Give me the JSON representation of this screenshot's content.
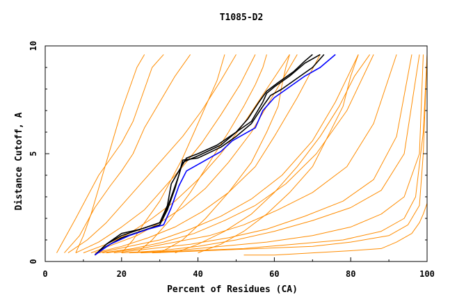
{
  "chart_data": {
    "type": "line",
    "title": "T1085-D2",
    "xlabel": "Percent of Residues (CA)",
    "ylabel": "Distance Cutoff, A",
    "xlim": [
      0,
      100
    ],
    "ylim": [
      0,
      10
    ],
    "x_ticks": [
      {
        "value": 0,
        "label": "0"
      },
      {
        "value": 20,
        "label": "20"
      },
      {
        "value": 40,
        "label": "40"
      },
      {
        "value": 60,
        "label": "60"
      },
      {
        "value": 80,
        "label": "80"
      },
      {
        "value": 100,
        "label": "100"
      }
    ],
    "y_ticks": [
      {
        "value": 0,
        "label": "0"
      },
      {
        "value": 5,
        "label": "5"
      },
      {
        "value": 10,
        "label": "10"
      }
    ],
    "grid": false,
    "legend": "none",
    "colors": {
      "background_models": "#ff8c00",
      "top_models": "#000000",
      "highlighted_model": "#0000ff"
    },
    "background_series_note": "many orange model curves (approximate envelopes)",
    "series": [
      {
        "group": "orange",
        "x": [
          3,
          8,
          14,
          20,
          23,
          25,
          27,
          28,
          30,
          31
        ],
        "y": [
          0.4,
          2.0,
          4.0,
          5.5,
          6.5,
          7.5,
          8.5,
          9.0,
          9.4,
          9.6
        ]
      },
      {
        "group": "orange",
        "x": [
          5,
          9,
          13,
          17,
          20,
          23,
          26,
          30,
          34,
          38
        ],
        "y": [
          0.4,
          1.2,
          2.5,
          3.5,
          4.2,
          5.0,
          6.2,
          7.4,
          8.6,
          9.6
        ]
      },
      {
        "group": "orange",
        "x": [
          6,
          11,
          16,
          21,
          26,
          31,
          36,
          41,
          46,
          50
        ],
        "y": [
          0.4,
          1.0,
          1.8,
          2.8,
          3.8,
          4.8,
          5.8,
          7.0,
          8.4,
          9.6
        ]
      },
      {
        "group": "orange",
        "x": [
          8,
          14,
          20,
          26,
          31,
          36,
          41,
          46,
          51,
          55
        ],
        "y": [
          0.4,
          0.9,
          1.6,
          2.4,
          3.4,
          4.4,
          5.5,
          6.8,
          8.2,
          9.6
        ]
      },
      {
        "group": "orange",
        "x": [
          10,
          16,
          22,
          28,
          34,
          40,
          46,
          52,
          58,
          64
        ],
        "y": [
          0.4,
          0.8,
          1.3,
          2.0,
          2.8,
          3.8,
          5.0,
          6.4,
          8.0,
          9.6
        ]
      },
      {
        "group": "orange",
        "x": [
          12,
          18,
          24,
          30,
          36,
          42,
          48,
          54,
          60,
          66
        ],
        "y": [
          0.4,
          0.8,
          1.2,
          1.8,
          2.5,
          3.4,
          4.6,
          6.0,
          7.8,
          9.6
        ]
      },
      {
        "group": "orange",
        "x": [
          13,
          20,
          27,
          34,
          41,
          48,
          55,
          60,
          66,
          72
        ],
        "y": [
          0.4,
          0.7,
          1.1,
          1.6,
          2.3,
          3.2,
          4.4,
          5.8,
          7.6,
          9.6
        ]
      },
      {
        "group": "orange",
        "x": [
          14,
          22,
          30,
          38,
          46,
          54,
          62,
          70,
          76,
          82
        ],
        "y": [
          0.4,
          0.7,
          1.0,
          1.5,
          2.1,
          2.9,
          4.0,
          5.6,
          7.4,
          9.6
        ]
      },
      {
        "group": "orange",
        "x": [
          15,
          23,
          31,
          39,
          47,
          55,
          63,
          71,
          79,
          86
        ],
        "y": [
          0.4,
          0.6,
          0.9,
          1.3,
          1.9,
          2.6,
          3.6,
          5.0,
          7.0,
          9.6
        ]
      },
      {
        "group": "orange",
        "x": [
          16,
          25,
          34,
          43,
          52,
          61,
          70,
          79,
          86,
          92
        ],
        "y": [
          0.4,
          0.6,
          0.9,
          1.2,
          1.7,
          2.4,
          3.2,
          4.4,
          6.4,
          9.6
        ]
      },
      {
        "group": "orange",
        "x": [
          18,
          28,
          38,
          48,
          58,
          68,
          78,
          86,
          92,
          96
        ],
        "y": [
          0.4,
          0.6,
          0.8,
          1.1,
          1.5,
          2.1,
          2.8,
          3.8,
          5.8,
          9.6
        ]
      },
      {
        "group": "orange",
        "x": [
          20,
          30,
          40,
          50,
          60,
          70,
          80,
          88,
          94,
          98
        ],
        "y": [
          0.4,
          0.5,
          0.7,
          1.0,
          1.4,
          1.9,
          2.5,
          3.3,
          5.0,
          9.6
        ]
      },
      {
        "group": "orange",
        "x": [
          22,
          34,
          46,
          58,
          70,
          80,
          88,
          94,
          98,
          99
        ],
        "y": [
          0.4,
          0.5,
          0.7,
          0.9,
          1.2,
          1.6,
          2.2,
          3.0,
          5.0,
          9.6
        ]
      },
      {
        "group": "orange",
        "x": [
          25,
          38,
          52,
          65,
          78,
          88,
          94,
          97,
          99,
          100
        ],
        "y": [
          0.4,
          0.5,
          0.6,
          0.8,
          1.0,
          1.4,
          2.0,
          3.0,
          6.0,
          9.6
        ]
      },
      {
        "group": "orange",
        "x": [
          28,
          42,
          56,
          70,
          80,
          90,
          95,
          98,
          99,
          100
        ],
        "y": [
          0.4,
          0.5,
          0.6,
          0.7,
          0.9,
          1.2,
          1.7,
          2.6,
          5.0,
          9.6
        ]
      },
      {
        "group": "orange",
        "x": [
          52,
          60,
          70,
          80,
          88,
          92,
          96,
          98,
          99,
          100
        ],
        "y": [
          0.3,
          0.3,
          0.4,
          0.5,
          0.6,
          0.9,
          1.3,
          1.8,
          2.2,
          2.7
        ]
      },
      {
        "group": "orange",
        "x": [
          20,
          23,
          26,
          30,
          33,
          36,
          39,
          42,
          45,
          47
        ],
        "y": [
          0.4,
          1.0,
          1.8,
          2.8,
          3.8,
          4.8,
          6.0,
          7.2,
          8.4,
          9.6
        ]
      },
      {
        "group": "orange",
        "x": [
          24,
          28,
          33,
          38,
          43,
          48,
          52,
          55,
          57,
          58
        ],
        "y": [
          0.4,
          1.0,
          2.0,
          3.2,
          4.6,
          6.0,
          7.2,
          8.2,
          9.0,
          9.6
        ]
      },
      {
        "group": "orange",
        "x": [
          30,
          36,
          42,
          48,
          54,
          58,
          61,
          62,
          63,
          64
        ],
        "y": [
          0.4,
          1.0,
          2.0,
          3.2,
          4.6,
          6.0,
          7.2,
          8.2,
          9.0,
          9.6
        ]
      },
      {
        "group": "orange",
        "x": [
          34,
          40,
          47,
          54,
          60,
          66,
          72,
          77,
          81,
          85
        ],
        "y": [
          0.4,
          0.8,
          1.4,
          2.2,
          3.2,
          4.4,
          5.8,
          7.2,
          8.6,
          9.6
        ]
      },
      {
        "group": "orange",
        "x": [
          8,
          10,
          12,
          14,
          16,
          18,
          20,
          22,
          24,
          26
        ],
        "y": [
          0.4,
          1.2,
          2.2,
          3.4,
          4.6,
          5.8,
          7.0,
          8.0,
          9.0,
          9.6
        ]
      },
      {
        "group": "orange",
        "x": [
          40,
          46,
          52,
          58,
          64,
          70,
          74,
          78,
          80,
          82
        ],
        "y": [
          0.4,
          0.8,
          1.4,
          2.2,
          3.2,
          4.4,
          5.8,
          7.2,
          8.6,
          9.6
        ]
      },
      {
        "group": "black",
        "x": [
          13,
          16,
          20,
          25,
          30,
          32,
          34,
          35,
          36,
          40,
          46,
          50,
          54,
          57,
          58,
          60,
          64,
          68,
          72
        ],
        "y": [
          0.3,
          0.8,
          1.2,
          1.5,
          1.8,
          2.5,
          3.5,
          4.0,
          4.6,
          4.9,
          5.4,
          6.0,
          6.5,
          7.4,
          7.8,
          8.1,
          8.6,
          9.2,
          9.6
        ]
      },
      {
        "group": "black",
        "x": [
          13,
          16,
          20,
          25,
          30,
          32,
          33,
          35,
          37,
          40,
          45,
          50,
          53,
          56,
          58,
          61,
          65,
          68,
          70
        ],
        "y": [
          0.3,
          0.8,
          1.3,
          1.5,
          1.8,
          2.6,
          3.6,
          4.2,
          4.8,
          5.0,
          5.4,
          6.0,
          6.6,
          7.4,
          7.9,
          8.3,
          8.8,
          9.3,
          9.6
        ]
      },
      {
        "group": "black",
        "x": [
          13,
          16,
          20,
          25,
          30,
          32,
          34,
          35,
          36,
          40,
          46,
          50,
          54,
          57,
          59,
          62,
          66,
          70,
          73
        ],
        "y": [
          0.3,
          0.7,
          1.1,
          1.4,
          1.7,
          2.4,
          3.4,
          4.0,
          4.7,
          4.8,
          5.3,
          5.8,
          6.4,
          7.2,
          7.7,
          8.0,
          8.5,
          9.0,
          9.6
        ]
      },
      {
        "group": "blue",
        "x": [
          13,
          17,
          22,
          27,
          31,
          33,
          35,
          37,
          41,
          46,
          49,
          52,
          55,
          57,
          60,
          64,
          68,
          72,
          76
        ],
        "y": [
          0.3,
          0.8,
          1.2,
          1.5,
          1.7,
          2.5,
          3.5,
          4.2,
          4.6,
          5.1,
          5.6,
          5.9,
          6.2,
          7.0,
          7.6,
          8.1,
          8.6,
          9.0,
          9.6
        ]
      }
    ]
  }
}
